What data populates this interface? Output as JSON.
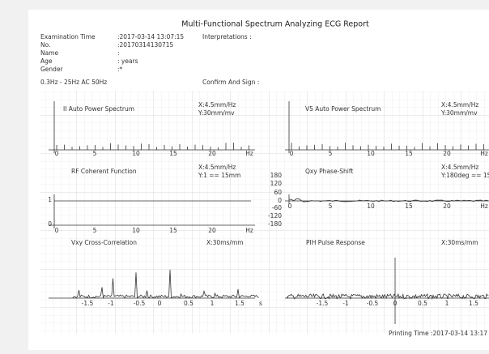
{
  "header": {
    "title": "Multi-Functional Spectrum Analyzing ECG Report",
    "fields": [
      {
        "label": "Examination Time",
        "value": ":2017-03-14 13:07:15"
      },
      {
        "label": "No.",
        "value": ":20170314130715"
      },
      {
        "label": "Name",
        "value": ":"
      },
      {
        "label": "Age",
        "value": ": years"
      },
      {
        "label": "Gender",
        "value": ":*"
      }
    ],
    "interpretations": "Interpretations :",
    "filter": "0.3Hz - 25Hz AC 50Hz",
    "confirm": "Confirm And Sign :"
  },
  "panels": [
    {
      "title": "II  Auto Power Spectrum",
      "scale": [
        "X:4.5mm/Hz",
        "Y:30mm/mv"
      ],
      "xticks": [
        "0",
        "5",
        "10",
        "15",
        "20",
        "Hz"
      ],
      "yticks": []
    },
    {
      "title": "V5  Auto Power Spectrum",
      "scale": [
        "X:4.5mm/Hz",
        "Y:30mm/mv"
      ],
      "xticks": [
        "0",
        "5",
        "10",
        "15",
        "20",
        "Hz"
      ],
      "yticks": []
    },
    {
      "title": "RF  Coherent Function",
      "scale": [
        "X:4.5mm/Hz",
        "Y:1 == 15mm"
      ],
      "xticks": [
        "0",
        "5",
        "10",
        "15",
        "20",
        "Hz"
      ],
      "yticks": [
        "1",
        "0"
      ]
    },
    {
      "title": "Qxy  Phase-Shift",
      "scale": [
        "X:4.5mm/Hz",
        "Y:180deg == 15"
      ],
      "xticks": [
        "0",
        "5",
        "10",
        "15",
        "20",
        "Hz"
      ],
      "yticks": [
        "180",
        "120",
        "60",
        "0",
        "-60",
        "-120",
        "-180"
      ]
    },
    {
      "title": "Vxy  Cross-Correlation",
      "scale": [
        "X:30ms/mm"
      ],
      "xticks": [
        "-1.5",
        "-1",
        "-0.5",
        "0",
        "0.5",
        "1",
        "1.5",
        "s"
      ],
      "yticks": []
    },
    {
      "title": "PIH  Pulse Response",
      "scale": [
        "X:30ms/mm"
      ],
      "xticks": [
        "-1.5",
        "-1",
        "-0.5",
        "0",
        "0.5",
        "1",
        "1.5"
      ],
      "yticks": []
    }
  ],
  "footer": {
    "printing_time": "Printing Time :2017-03-14 13:17"
  }
}
